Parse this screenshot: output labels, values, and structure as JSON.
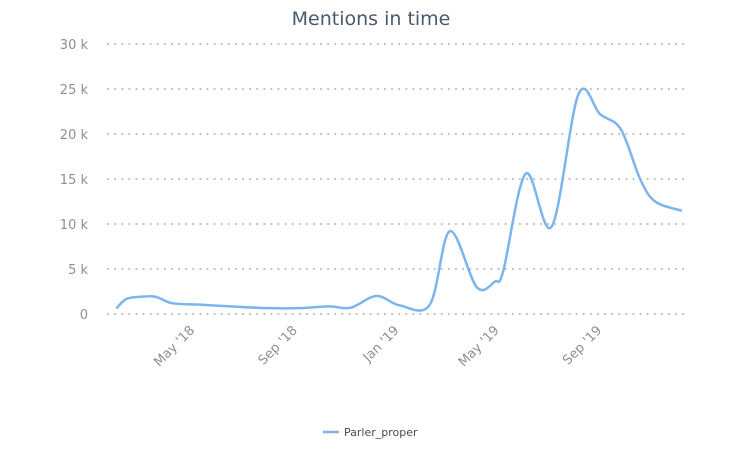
{
  "chart_data": {
    "type": "line",
    "title": "Mentions in time",
    "xlabel": "",
    "ylabel": "",
    "ylim": [
      0,
      30000
    ],
    "yticks": [
      0,
      5000,
      10000,
      15000,
      20000,
      25000,
      30000
    ],
    "ytick_labels": [
      "0",
      "5 k",
      "10 k",
      "15 k",
      "20 k",
      "25 k",
      "30 k"
    ],
    "xticks": [
      "2018-05-01",
      "2018-09-01",
      "2019-01-01",
      "2019-05-01",
      "2019-09-01"
    ],
    "xtick_labels": [
      "May '18",
      "Sep '18",
      "Jan '19",
      "May '19",
      "Sep '19"
    ],
    "grid": "horizontal dotted",
    "legend": "bottom-center",
    "series": [
      {
        "name": "Parler_proper",
        "color": "#7cb5ec",
        "points": [
          [
            "2018-02-01",
            700
          ],
          [
            "2018-02-13",
            1700
          ],
          [
            "2018-03-07",
            1950
          ],
          [
            "2018-03-20",
            1900
          ],
          [
            "2018-04-08",
            1200
          ],
          [
            "2018-05-08",
            1050
          ],
          [
            "2018-06-25",
            800
          ],
          [
            "2018-08-01",
            650
          ],
          [
            "2018-09-07",
            650
          ],
          [
            "2018-10-13",
            850
          ],
          [
            "2018-11-08",
            700
          ],
          [
            "2018-12-09",
            2000
          ],
          [
            "2019-01-06",
            950
          ],
          [
            "2019-02-11",
            1050
          ],
          [
            "2019-03-07",
            9200
          ],
          [
            "2019-04-08",
            3000
          ],
          [
            "2019-04-30",
            3600
          ],
          [
            "2019-05-10",
            4800
          ],
          [
            "2019-06-06",
            15600
          ],
          [
            "2019-07-07",
            9700
          ],
          [
            "2019-08-08",
            24400
          ],
          [
            "2019-09-03",
            22200
          ],
          [
            "2019-09-28",
            20500
          ],
          [
            "2019-10-21",
            15000
          ],
          [
            "2019-11-08",
            12500
          ],
          [
            "2019-12-09",
            11500
          ]
        ]
      }
    ]
  }
}
